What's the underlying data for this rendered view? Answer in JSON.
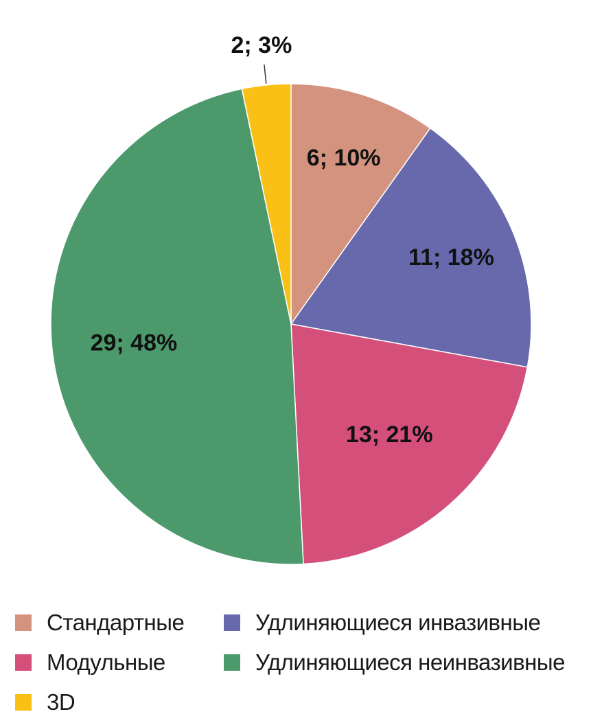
{
  "chart_data": {
    "type": "pie",
    "slices": [
      {
        "name": "Стандартные",
        "value": 6,
        "label": "6; 10%",
        "color": "#d4937f"
      },
      {
        "name": "Удлиняющиеся инвазивные",
        "value": 11,
        "label": "11; 18%",
        "color": "#6869ac"
      },
      {
        "name": "Модульные",
        "value": 13,
        "label": "13; 21%",
        "color": "#d4507b"
      },
      {
        "name": "Удлиняющиеся неинвазивные",
        "value": 29,
        "label": "29; 48%",
        "color": "#4c9a6c"
      },
      {
        "name": "3D",
        "value": 2,
        "label": "2; 3%",
        "color": "#fbc016"
      }
    ],
    "legend_position": "bottom"
  },
  "legend": {
    "items": [
      {
        "label": "Стандартные",
        "color": "#d4937f"
      },
      {
        "label": "Удлиняющиеся инвазивные",
        "color": "#6869ac"
      },
      {
        "label": "Модульные",
        "color": "#d4507b"
      },
      {
        "label": "Удлиняющиеся неинвазивные",
        "color": "#4c9a6c"
      },
      {
        "label": "3D",
        "color": "#fbc016"
      }
    ]
  }
}
